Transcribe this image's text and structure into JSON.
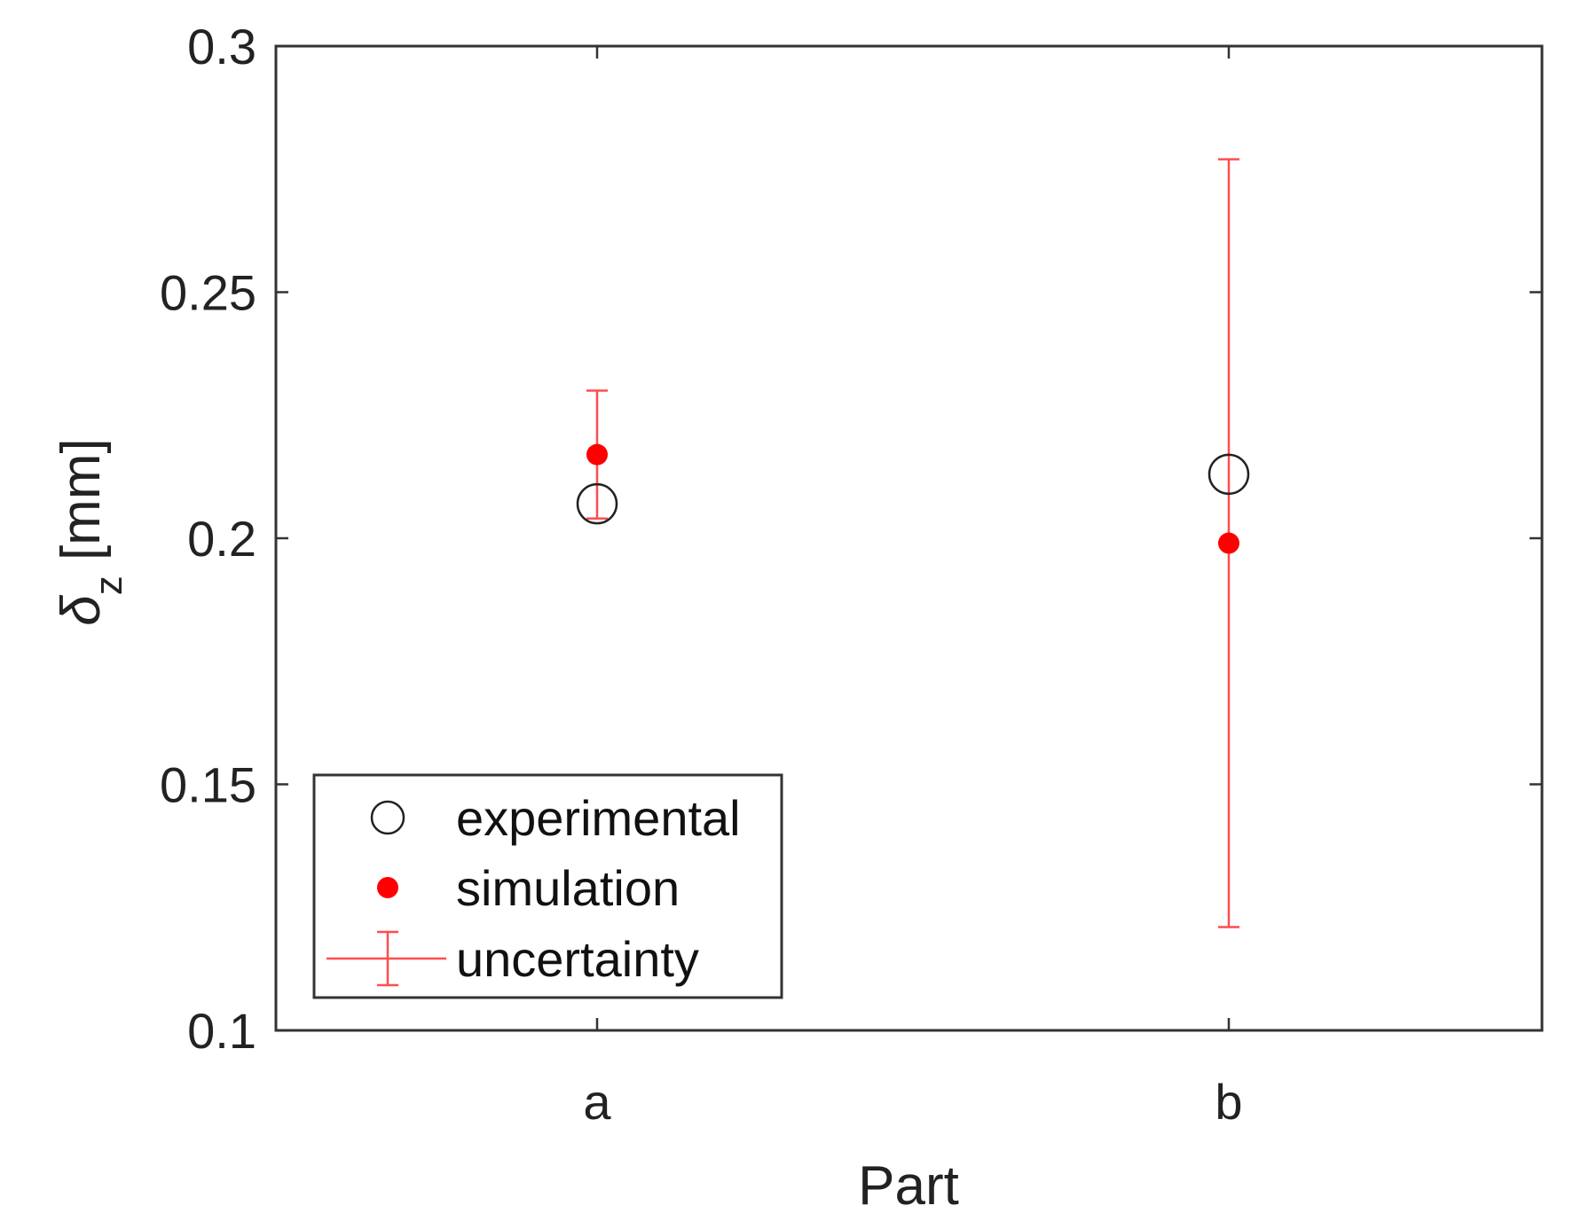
{
  "chart_data": {
    "type": "scatter",
    "categories": [
      "a",
      "b"
    ],
    "xlabel": "Part",
    "ylabel": {
      "symbol": "δ",
      "subscript": "z",
      "unit": " [mm]"
    },
    "ylim": [
      0.1,
      0.3
    ],
    "yticks": [
      0.1,
      0.15,
      0.2,
      0.25,
      0.3
    ],
    "ytick_labels": [
      "0.1",
      "0.15",
      "0.2",
      "0.25",
      "0.3"
    ],
    "grid": false,
    "legend": {
      "placement": "bottom-left",
      "entries": [
        {
          "key": "experimental",
          "label": "experimental"
        },
        {
          "key": "simulation",
          "label": "simulation"
        },
        {
          "key": "uncertainty",
          "label": "uncertainty"
        }
      ]
    },
    "series": [
      {
        "key": "experimental",
        "name": "experimental",
        "marker": "open-circle",
        "color": "#222222",
        "values": [
          0.207,
          0.213
        ]
      },
      {
        "key": "simulation",
        "name": "simulation",
        "marker": "filled-circle",
        "color": "#ff0000",
        "values": [
          0.217,
          0.199
        ]
      }
    ],
    "uncertainty": {
      "name": "uncertainty",
      "color": "#ff4d4d",
      "lower": [
        0.204,
        0.121
      ],
      "upper": [
        0.23,
        0.277
      ]
    }
  }
}
